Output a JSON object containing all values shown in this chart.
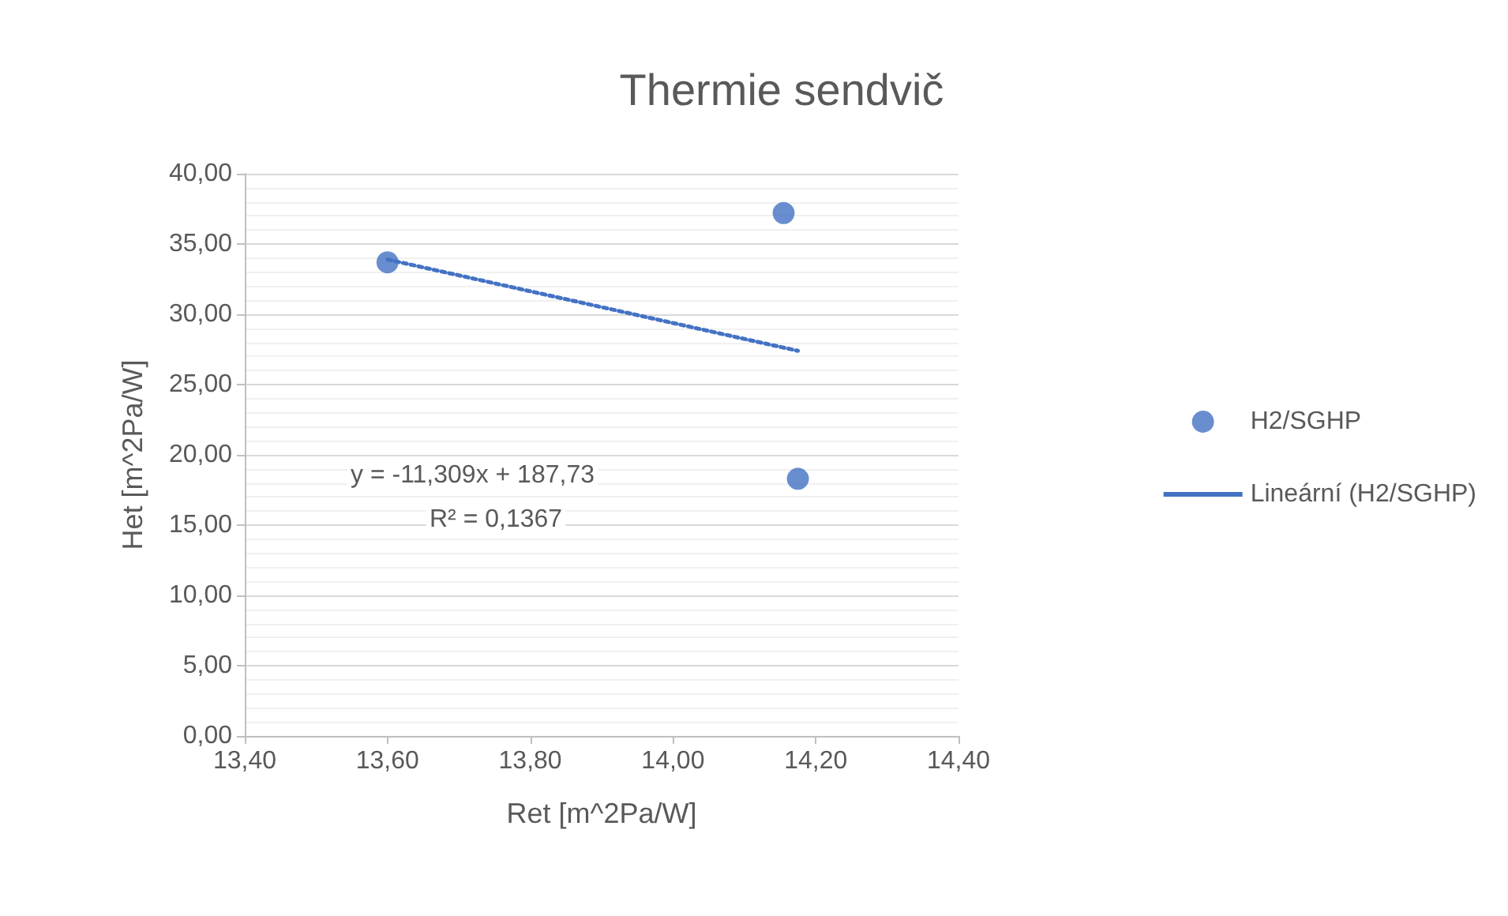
{
  "chart_data": {
    "type": "scatter",
    "title": "Thermie sendvič",
    "xlabel": "Ret [m^2Pa/W]",
    "ylabel": "Het [m^2Pa/W]",
    "series": [
      {
        "name": "H2/SGHP",
        "color": "#4472c4",
        "marker": "circle",
        "x": [
          13.6,
          14.155,
          14.175
        ],
        "values": [
          33.7,
          37.2,
          18.3
        ]
      },
      {
        "name": "Lineární (H2/SGHP)",
        "type": "line",
        "color": "#4472c4",
        "marker": "none",
        "line_style": "dotted",
        "x": [
          13.6,
          14.175
        ],
        "values": [
          33.9,
          27.4
        ]
      }
    ],
    "annotations": [
      "y = -11,309x + 187,73",
      "R² = 0,1367"
    ],
    "xlim": [
      13.4,
      14.4
    ],
    "xticks": [
      {
        "value": 13.4,
        "label": "13,40"
      },
      {
        "value": 13.6,
        "label": "13,60"
      },
      {
        "value": 13.8,
        "label": "13,80"
      },
      {
        "value": 14.0,
        "label": "14,00"
      },
      {
        "value": 14.2,
        "label": "14,20"
      },
      {
        "value": 14.4,
        "label": "14,40"
      }
    ],
    "ylim": [
      0,
      40
    ],
    "yticks": [
      {
        "value": 0,
        "label": "0,00"
      },
      {
        "value": 5,
        "label": "5,00"
      },
      {
        "value": 10,
        "label": "10,00"
      },
      {
        "value": 15,
        "label": "15,00"
      },
      {
        "value": 20,
        "label": "20,00"
      },
      {
        "value": 25,
        "label": "25,00"
      },
      {
        "value": 30,
        "label": "30,00"
      },
      {
        "value": 35,
        "label": "35,00"
      },
      {
        "value": 40,
        "label": "40,00"
      }
    ],
    "grid": "y",
    "legend": "right"
  }
}
